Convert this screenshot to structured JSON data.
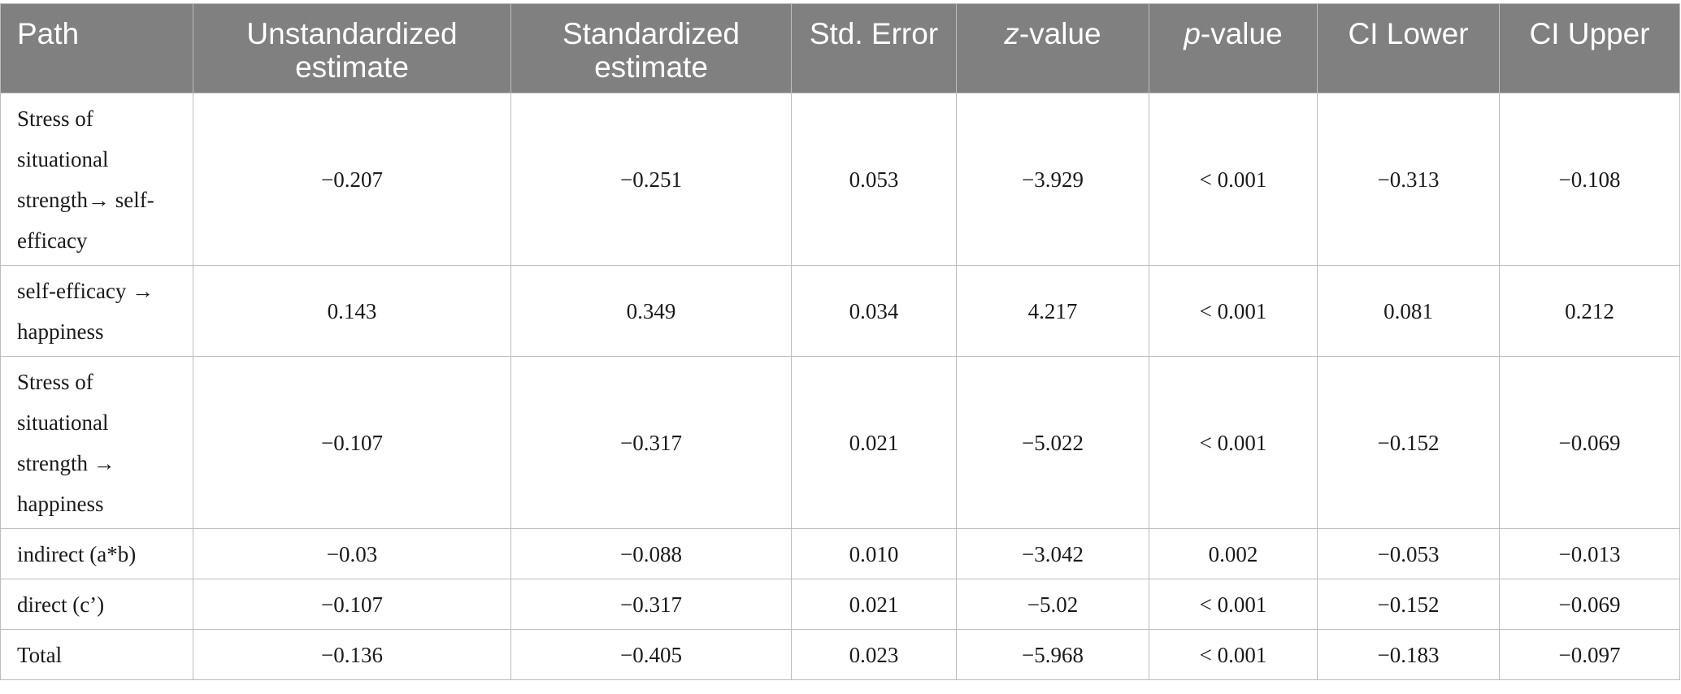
{
  "table": {
    "headers": {
      "path": "Path",
      "unstd_line1": "Unstandardized",
      "unstd_line2": "estimate",
      "std_line1": "Standardized",
      "std_line2": "estimate",
      "se": "Std. Error",
      "z_italic": "z",
      "z_rest": "-value",
      "p_italic": "p",
      "p_rest": "-value",
      "ci_lower": "CI Lower",
      "ci_upper": "CI Upper"
    },
    "rows": [
      {
        "path": "Stress of situational strength→ self-efficacy",
        "unstd": "−0.207",
        "std": "−0.251",
        "se": "0.053",
        "z": "−3.929",
        "p": "< 0.001",
        "ci_lower": "−0.313",
        "ci_upper": "−0.108"
      },
      {
        "path": "self-efficacy → happiness",
        "unstd": "0.143",
        "std": "0.349",
        "se": "0.034",
        "z": "4.217",
        "p": "< 0.001",
        "ci_lower": "0.081",
        "ci_upper": "0.212"
      },
      {
        "path": "Stress of situational strength → happiness",
        "unstd": "−0.107",
        "std": "−0.317",
        "se": "0.021",
        "z": "−5.022",
        "p": "< 0.001",
        "ci_lower": "−0.152",
        "ci_upper": "−0.069"
      },
      {
        "path": "indirect (a*b)",
        "unstd": "−0.03",
        "std": "−0.088",
        "se": "0.010",
        "z": "−3.042",
        "p": "0.002",
        "ci_lower": "−0.053",
        "ci_upper": "−0.013"
      },
      {
        "path": "direct (c’)",
        "unstd": "−0.107",
        "std": "−0.317",
        "se": "0.021",
        "z": "−5.02",
        "p": "< 0.001",
        "ci_lower": "−0.152",
        "ci_upper": "−0.069"
      },
      {
        "path": "Total",
        "unstd": "−0.136",
        "std": "−0.405",
        "se": "0.023",
        "z": "−5.968",
        "p": "< 0.001",
        "ci_lower": "−0.183",
        "ci_upper": "−0.097"
      }
    ]
  }
}
